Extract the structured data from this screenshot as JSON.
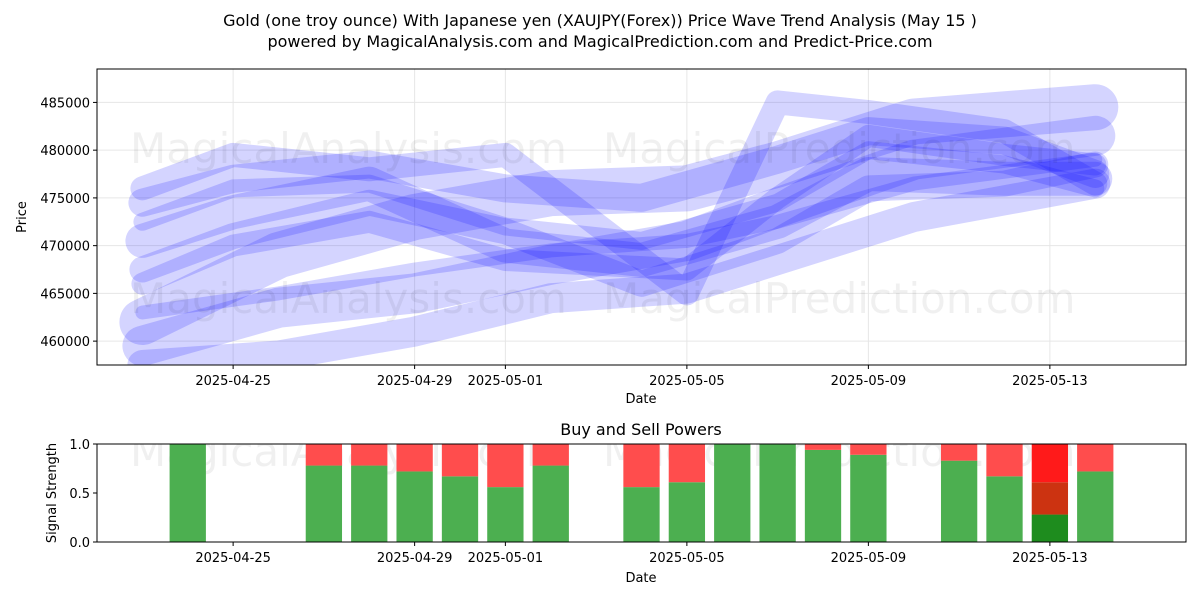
{
  "figure": {
    "title_line1": "Gold (one troy ounce) With Japanese yen (XAUJPY(Forex)) Price Wave Trend Analysis (May 15 )",
    "title_line2": "powered by MagicalAnalysis.com and MagicalPrediction.com and Predict-Price.com",
    "watermarks": [
      "MagicalAnalysis.com",
      "MagicalPrediction.com"
    ]
  },
  "chart_data": [
    {
      "type": "line",
      "name": "price-wave-chart",
      "xlabel": "Date",
      "ylabel": "Price",
      "xlim": [
        "2025-04-22",
        "2025-05-16"
      ],
      "ylim": [
        457500,
        488500
      ],
      "x_ticks": [
        "2025-04-25",
        "2025-04-29",
        "2025-05-01",
        "2025-05-05",
        "2025-05-09",
        "2025-05-13"
      ],
      "y_ticks": [
        460000,
        465000,
        470000,
        475000,
        480000,
        485000
      ],
      "y_tick_labels": [
        "460000",
        "465000",
        "470000",
        "475000",
        "480000",
        "485000"
      ],
      "grid": true,
      "colors": {
        "wave": "#0000ff"
      },
      "series": [
        {
          "x": [
            "2025-04-23",
            "2025-04-26",
            "2025-04-29",
            "2025-05-02",
            "2025-05-05",
            "2025-05-07",
            "2025-05-10",
            "2025-05-14"
          ],
          "y": [
            462000,
            469000,
            473000,
            475500,
            476000,
            478500,
            483000,
            484500
          ]
        },
        {
          "x": [
            "2025-04-23",
            "2025-04-26",
            "2025-04-29",
            "2025-05-02",
            "2025-05-05",
            "2025-05-07",
            "2025-05-10",
            "2025-05-14"
          ],
          "y": [
            459500,
            463500,
            465000,
            468000,
            470500,
            474000,
            479000,
            481500
          ]
        },
        {
          "x": [
            "2025-04-23",
            "2025-04-26",
            "2025-04-29",
            "2025-05-02",
            "2025-05-05",
            "2025-05-07",
            "2025-05-10",
            "2025-05-14"
          ],
          "y": [
            457500,
            458500,
            461000,
            464500,
            465500,
            468500,
            473000,
            476500
          ]
        },
        {
          "x": [
            "2025-04-23",
            "2025-04-25",
            "2025-04-28",
            "2025-05-01",
            "2025-05-05",
            "2025-05-07",
            "2025-05-09",
            "2025-05-12",
            "2025-05-14"
          ],
          "y": [
            466000,
            470000,
            472500,
            468500,
            467500,
            475000,
            481500,
            479500,
            478500
          ]
        },
        {
          "x": [
            "2025-04-23",
            "2025-04-25",
            "2025-04-28",
            "2025-05-01",
            "2025-05-04",
            "2025-05-07",
            "2025-05-09",
            "2025-05-12",
            "2025-05-14"
          ],
          "y": [
            474500,
            477000,
            478500,
            476000,
            475000,
            479000,
            482000,
            481000,
            477500
          ]
        },
        {
          "x": [
            "2025-04-23",
            "2025-04-25",
            "2025-04-28",
            "2025-05-01",
            "2025-05-04",
            "2025-05-07",
            "2025-05-09",
            "2025-05-12",
            "2025-05-14"
          ],
          "y": [
            472500,
            476000,
            476500,
            472000,
            470500,
            474500,
            480000,
            478500,
            476000
          ]
        },
        {
          "x": [
            "2025-04-23",
            "2025-04-25",
            "2025-04-28",
            "2025-05-01",
            "2025-05-05",
            "2025-05-07",
            "2025-05-09",
            "2025-05-12",
            "2025-05-14"
          ],
          "y": [
            476000,
            479500,
            478000,
            479500,
            465000,
            485000,
            484000,
            482000,
            476500
          ]
        },
        {
          "x": [
            "2025-04-23",
            "2025-04-25",
            "2025-04-28",
            "2025-05-01",
            "2025-05-04",
            "2025-05-07",
            "2025-05-09",
            "2025-05-12",
            "2025-05-14"
          ],
          "y": [
            470500,
            473500,
            476500,
            470000,
            468500,
            472500,
            477500,
            477000,
            477000
          ]
        },
        {
          "x": [
            "2025-04-23",
            "2025-04-25",
            "2025-04-28",
            "2025-05-01",
            "2025-05-04",
            "2025-05-07",
            "2025-05-09",
            "2025-05-12",
            "2025-05-14"
          ],
          "y": [
            467500,
            471000,
            474500,
            471500,
            466000,
            470500,
            476000,
            476500,
            478500
          ]
        },
        {
          "x": [
            "2025-04-23",
            "2025-04-26",
            "2025-04-29",
            "2025-05-02",
            "2025-05-05",
            "2025-05-07",
            "2025-05-10",
            "2025-05-14"
          ],
          "y": [
            463000,
            465000,
            467500,
            469500,
            470500,
            472500,
            476500,
            479000
          ]
        }
      ]
    },
    {
      "type": "bar",
      "name": "buy-sell-powers",
      "title": "Buy and Sell Powers",
      "xlabel": "Date",
      "ylabel": "Signal Strength",
      "ylim": [
        0,
        1
      ],
      "x_ticks": [
        "2025-04-25",
        "2025-04-29",
        "2025-05-01",
        "2025-05-05",
        "2025-05-09",
        "2025-05-13"
      ],
      "y_ticks": [
        0,
        0.5,
        1
      ],
      "y_tick_labels": [
        "0.0",
        "0.5",
        "1.0"
      ],
      "colors": {
        "buy": "#4caf50",
        "sell": "#ff4d4d",
        "buy_strong": "#1e8c1e",
        "sell_strong": "#ff1a1a",
        "mixed": "#cc3311"
      },
      "categories": [
        "2025-04-24",
        "2025-04-27",
        "2025-04-28",
        "2025-04-29",
        "2025-04-30",
        "2025-05-01",
        "2025-05-02",
        "2025-05-04",
        "2025-05-05",
        "2025-05-06",
        "2025-05-07",
        "2025-05-08",
        "2025-05-09",
        "2025-05-11",
        "2025-05-12",
        "2025-05-13",
        "2025-05-14"
      ],
      "series": [
        {
          "name": "buy",
          "values": [
            1.0,
            0.78,
            0.78,
            0.72,
            0.67,
            0.56,
            0.78,
            0.56,
            0.61,
            1.0,
            1.0,
            0.94,
            0.89,
            0.83,
            0.67,
            0.28,
            0.72
          ]
        },
        {
          "name": "sell",
          "values": [
            0.0,
            0.22,
            0.22,
            0.28,
            0.33,
            0.44,
            0.22,
            0.44,
            0.39,
            0.0,
            0.0,
            0.06,
            0.11,
            0.17,
            0.33,
            0.72,
            0.28
          ]
        }
      ],
      "highlight": {
        "date": "2025-05-13",
        "strong_buy": 0.28,
        "mixed": 0.33,
        "strong_sell": 0.39
      }
    }
  ]
}
